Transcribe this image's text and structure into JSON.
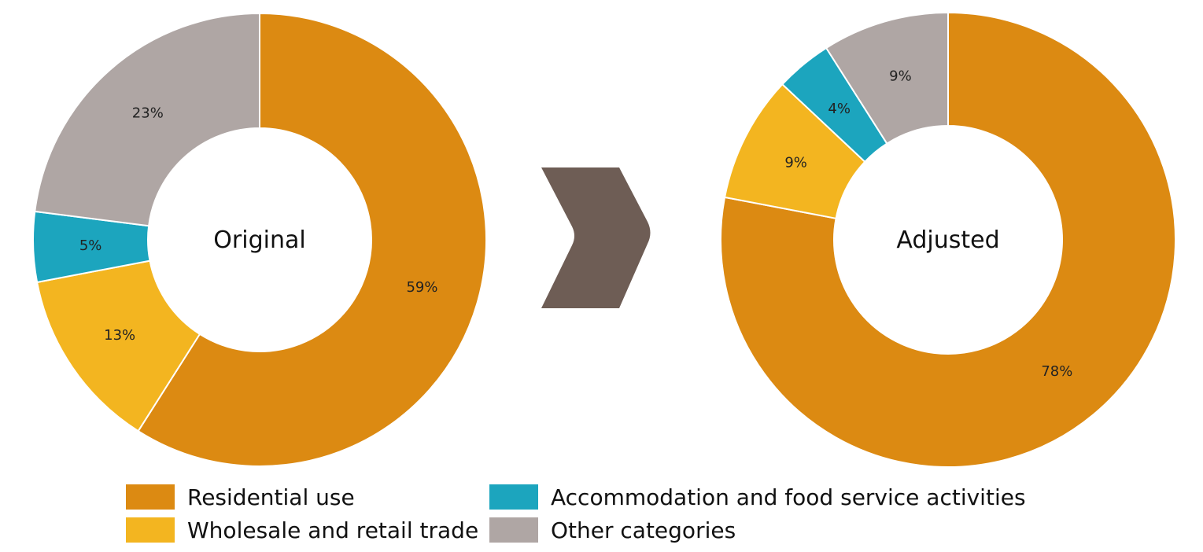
{
  "chart_data": [
    {
      "type": "pie",
      "center_label": "Original",
      "slices": [
        {
          "category": "Residential use",
          "value": 59,
          "label": "59%"
        },
        {
          "category": "Wholesale and retail trade",
          "value": 13,
          "label": "13%"
        },
        {
          "category": "Accommodation and food service activities",
          "value": 5,
          "label": "5%"
        },
        {
          "category": "Other categories",
          "value": 23,
          "label": "23%"
        }
      ]
    },
    {
      "type": "pie",
      "center_label": "Adjusted",
      "slices": [
        {
          "category": "Residential use",
          "value": 78,
          "label": "78%"
        },
        {
          "category": "Wholesale and retail trade",
          "value": 9,
          "label": "9%"
        },
        {
          "category": "Accommodation and food service activities",
          "value": 4,
          "label": "4%"
        },
        {
          "category": "Other categories",
          "value": 9,
          "label": "9%"
        }
      ]
    }
  ],
  "legend": [
    {
      "label": "Residential use",
      "color": "#DC8A12"
    },
    {
      "label": "Wholesale and retail trade",
      "color": "#F3B520"
    },
    {
      "label": "Accommodation and food service activities",
      "color": "#1CA5BE"
    },
    {
      "label": "Other categories",
      "color": "#AFA6A4"
    }
  ],
  "arrow_color": "#6E5D55",
  "legend_placement": "bottom"
}
